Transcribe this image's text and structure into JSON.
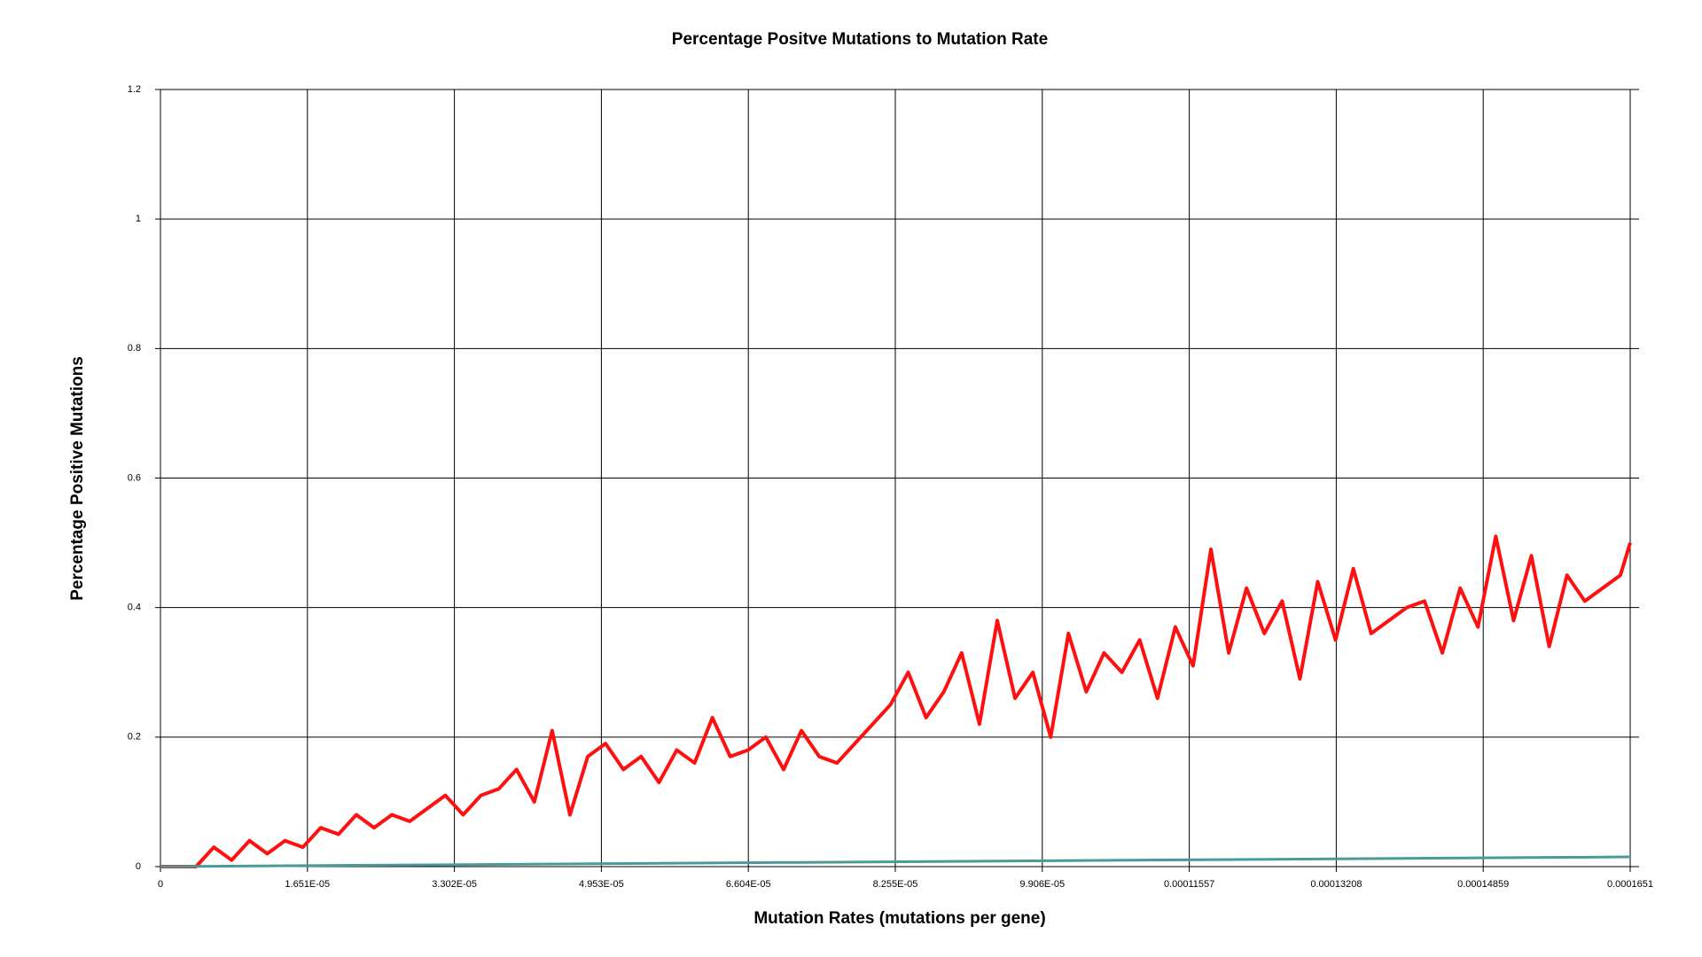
{
  "chart_data": {
    "type": "line",
    "title": "Percentage Positve Mutations to Mutation Rate",
    "x_label": "Mutation Rates (mutations per gene)",
    "y_label": "Percentage Positive Mutations",
    "xlim": [
      0,
      0.0001651
    ],
    "ylim": [
      0,
      1.2
    ],
    "xticks": [
      0,
      {
        "value": 1.651e-05,
        "label": "1.651E-05"
      },
      {
        "value": 3.302e-05,
        "label": "3.302E-05"
      },
      {
        "value": 4.953e-05,
        "label": "4.953E-05"
      },
      {
        "value": 6.604e-05,
        "label": "6.604E-05"
      },
      {
        "value": 8.255e-05,
        "label": "8.255E-05"
      },
      {
        "value": 9.906e-05,
        "label": "9.906E-05"
      },
      0.00011557,
      0.00013208,
      0.00014859,
      0.0001651
    ],
    "yticks": [
      0,
      0.2,
      0.4,
      0.6,
      0.8,
      1,
      1.2
    ],
    "grid": true,
    "series": [
      {
        "color": "#ff1010",
        "x": [
          0,
          2e-06,
          4e-06,
          6e-06,
          8e-06,
          1e-05,
          1.2e-05,
          1.4e-05,
          1.6e-05,
          1.8e-05,
          2e-05,
          2.2e-05,
          2.4e-05,
          2.6e-05,
          2.8e-05,
          3e-05,
          3.2e-05,
          3.4e-05,
          3.6e-05,
          3.8e-05,
          4e-05,
          4.2e-05,
          4.4e-05,
          4.6e-05,
          4.8e-05,
          5e-05,
          5.2e-05,
          5.4e-05,
          5.6e-05,
          5.8e-05,
          6e-05,
          6.2e-05,
          6.4e-05,
          6.6e-05,
          6.8e-05,
          7e-05,
          7.2e-05,
          7.4e-05,
          7.6e-05,
          7.8e-05,
          8e-05,
          8.2e-05,
          8.4e-05,
          8.6e-05,
          8.8e-05,
          9e-05,
          9.2e-05,
          9.4e-05,
          9.6e-05,
          9.8e-05,
          0.0001,
          0.000102,
          0.000104,
          0.000106,
          0.000108,
          0.00011,
          0.000112,
          0.000114,
          0.000116,
          0.000118,
          0.00012,
          0.000122,
          0.000124,
          0.000126,
          0.000128,
          0.00013,
          0.000132,
          0.000134,
          0.000136,
          0.000138,
          0.00014,
          0.000142,
          0.000144,
          0.000146,
          0.000148,
          0.00015,
          0.000152,
          0.000154,
          0.000156,
          0.000158,
          0.00016,
          0.000162,
          0.000164,
          0.0001651
        ],
        "values": [
          0,
          0,
          0,
          0.03,
          0.01,
          0.04,
          0.02,
          0.04,
          0.03,
          0.06,
          0.05,
          0.08,
          0.06,
          0.08,
          0.07,
          0.09,
          0.11,
          0.08,
          0.11,
          0.12,
          0.15,
          0.1,
          0.21,
          0.08,
          0.17,
          0.19,
          0.15,
          0.17,
          0.13,
          0.18,
          0.16,
          0.23,
          0.17,
          0.18,
          0.2,
          0.15,
          0.21,
          0.17,
          0.16,
          0.19,
          0.22,
          0.25,
          0.3,
          0.23,
          0.27,
          0.33,
          0.22,
          0.38,
          0.26,
          0.3,
          0.2,
          0.36,
          0.27,
          0.33,
          0.3,
          0.35,
          0.26,
          0.37,
          0.31,
          0.49,
          0.33,
          0.43,
          0.36,
          0.41,
          0.29,
          0.44,
          0.35,
          0.46,
          0.36,
          0.38,
          0.4,
          0.41,
          0.33,
          0.43,
          0.37,
          0.51,
          0.38,
          0.48,
          0.34,
          0.45,
          0.41,
          0.43,
          0.45,
          0.5
        ]
      },
      {
        "color": "#4a9a9a",
        "x": [
          0,
          0.0001651
        ],
        "values": [
          0,
          0.015
        ]
      }
    ]
  }
}
